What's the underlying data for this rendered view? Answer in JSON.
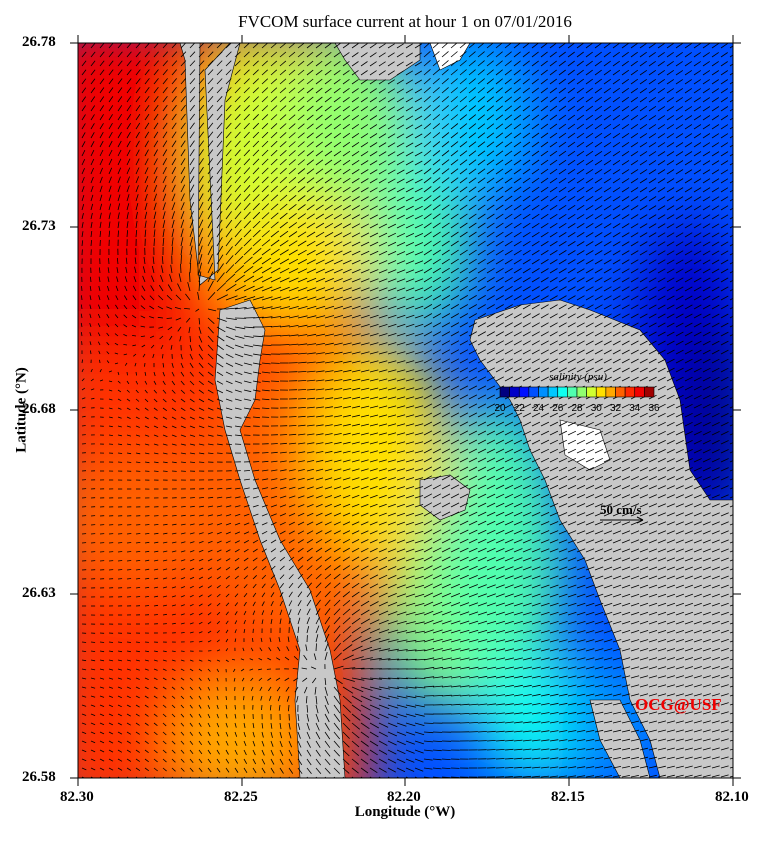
{
  "title": "FVCOM surface current at hour 1 on 07/01/2016",
  "x_axis": {
    "label": "Longitude (°W)",
    "ticks": [
      "82.30",
      "82.25",
      "82.20",
      "82.15",
      "82.10"
    ],
    "range": [
      82.3,
      82.1
    ]
  },
  "y_axis": {
    "label": "Latitude (°N)",
    "ticks": [
      "26.78",
      "26.73",
      "26.68",
      "26.63",
      "26.58"
    ],
    "range": [
      26.58,
      26.78
    ]
  },
  "colorbar": {
    "label": "salinity (psu)",
    "ticks": [
      "20",
      "22",
      "24",
      "26",
      "28",
      "30",
      "32",
      "34",
      "36"
    ],
    "colors": [
      "#000080",
      "#0000c8",
      "#0010ff",
      "#0050ff",
      "#0090ff",
      "#00c8ff",
      "#10ffef",
      "#50ffaf",
      "#90ff70",
      "#d0ff30",
      "#ffe000",
      "#ffa800",
      "#ff6000",
      "#ff2800",
      "#f00000",
      "#a00000"
    ]
  },
  "scale_vector": {
    "label": "50 cm/s"
  },
  "credit": "OCG@USF",
  "land_color": "#c8c8c8"
}
